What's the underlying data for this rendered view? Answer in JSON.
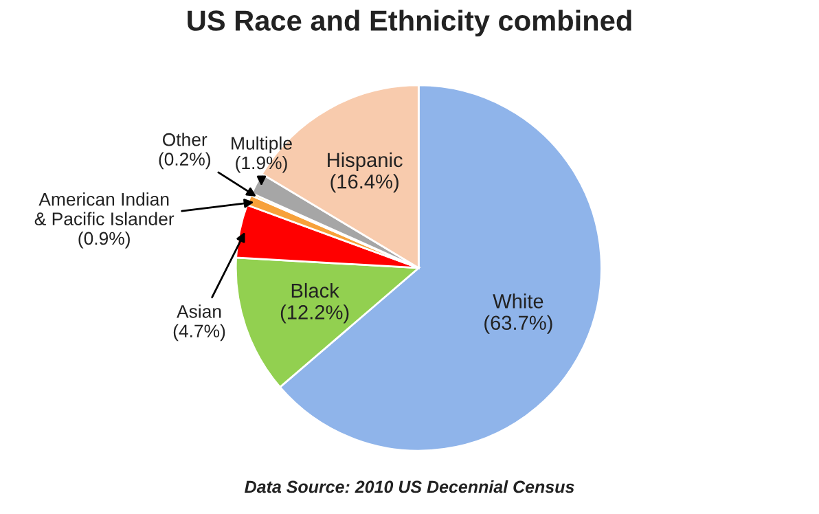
{
  "chart_data": {
    "type": "pie",
    "title": "US Race and Ethnicity combined",
    "categories": [
      "White",
      "Black",
      "Asian",
      "American Indian\n& Pacific Islander",
      "Other",
      "Multiple",
      "Hispanic"
    ],
    "values": [
      63.7,
      12.2,
      4.7,
      0.9,
      0.2,
      1.9,
      16.4
    ],
    "colors": [
      "#8fb4ea",
      "#92d050",
      "#ff0000",
      "#f7a13a",
      "#ffc000",
      "#a6a6a6",
      "#f8cbad"
    ],
    "value_labels": [
      "(63.7%)",
      "(12.2%)",
      "(4.7%)",
      "(0.9%)",
      "(0.2%)",
      "(1.9%)",
      "(16.4%)"
    ],
    "annotations": [
      "Data Source: 2010 US Decennial Census"
    ]
  }
}
